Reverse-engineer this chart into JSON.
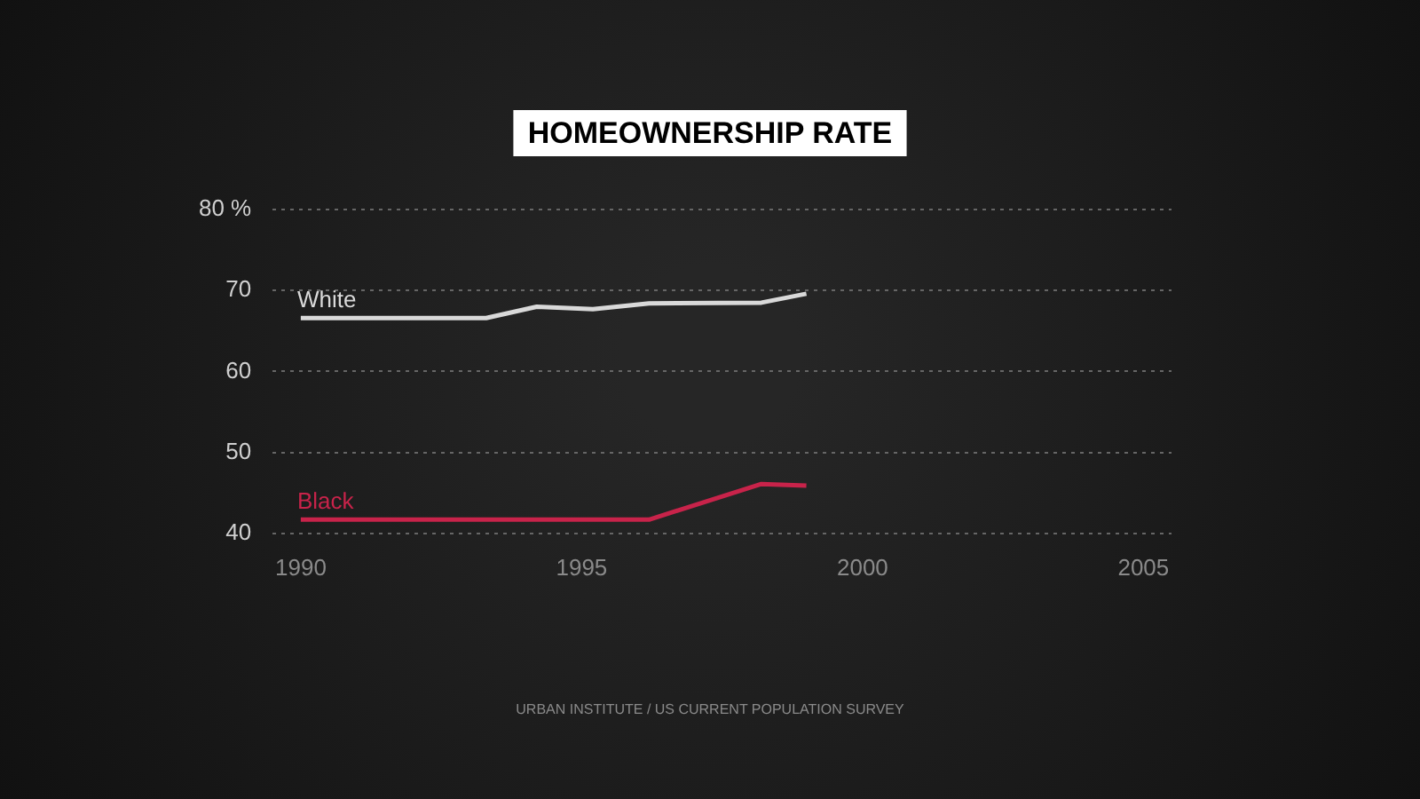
{
  "chart_data": {
    "type": "line",
    "title": "HOMEOWNERSHIP RATE",
    "series": [
      {
        "name": "White",
        "color": "#d9d9d9",
        "x": [
          1990,
          1993.3,
          1994.2,
          1995.2,
          1996.2,
          1998.2,
          1999
        ],
        "values": [
          66.6,
          66.6,
          68.0,
          67.7,
          68.4,
          68.5,
          69.6
        ]
      },
      {
        "name": "Black",
        "color": "#c8234a",
        "x": [
          1990,
          1996.2,
          1998.2,
          1999
        ],
        "values": [
          41.7,
          41.7,
          46.1,
          45.9
        ]
      }
    ],
    "xlim": [
      1989.5,
      2005.5
    ],
    "xticks": [
      1990,
      1995,
      2000,
      2005
    ],
    "ylim": [
      40,
      80
    ],
    "yticks": [
      {
        "value": 40,
        "label": "40"
      },
      {
        "value": 50,
        "label": "50"
      },
      {
        "value": 60,
        "label": "60"
      },
      {
        "value": 70,
        "label": "70"
      },
      {
        "value": 80,
        "label": "80 %"
      }
    ],
    "grid": "y",
    "legend": false,
    "marker": "none",
    "line_style": "solid",
    "annotations": [
      "URBAN INSTITUTE / US CURRENT POPULATION SURVEY"
    ]
  }
}
